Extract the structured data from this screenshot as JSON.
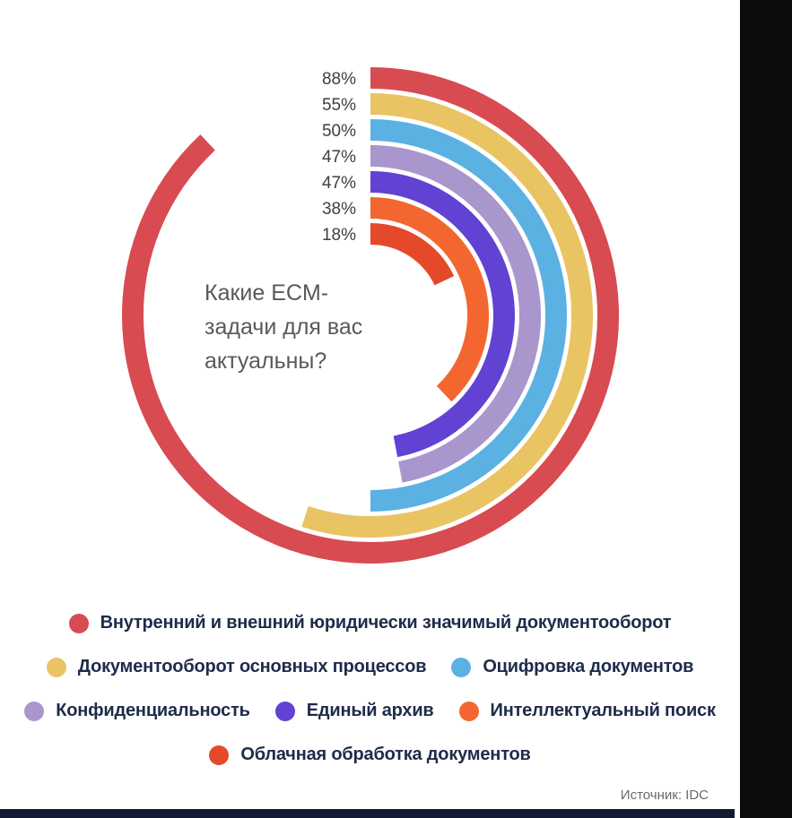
{
  "chart_data": {
    "type": "bar",
    "variant": "radial",
    "title": "Какие ECM-задачи для вас актуальны?",
    "title_lines": [
      "Какие ECM-",
      "задачи для вас",
      "актуальны?"
    ],
    "categories": [
      "Внутренний и внешний юридически значимый документооборот",
      "Документооборот основных процессов",
      "Оцифровка документов",
      "Конфиденциальность",
      "Единый архив",
      "Интеллектуальный поиск",
      "Облачная обработка документов"
    ],
    "values": [
      88,
      55,
      50,
      47,
      47,
      38,
      18
    ],
    "value_labels": [
      "88%",
      "55%",
      "50%",
      "47%",
      "47%",
      "38%",
      "18%"
    ],
    "colors": [
      "#d74b51",
      "#e9c463",
      "#5bb2e2",
      "#a996cc",
      "#6142d2",
      "#f4662f",
      "#e4492a"
    ],
    "unit": "%",
    "max_value": 100,
    "start_angle_deg": 0,
    "direction": "clockwise",
    "grid": false,
    "legend_position": "bottom"
  },
  "legend": {
    "rows": [
      [
        0
      ],
      [
        1,
        2
      ],
      [
        3,
        4,
        5
      ],
      [
        6
      ]
    ]
  },
  "source": {
    "label": "Источник: IDC"
  },
  "decor": {
    "right_strip_color": "#0c0c0c",
    "bottom_bar_color": "#101a33",
    "question_color": "#58595b",
    "value_label_color": "#3f3f3f",
    "legend_text_color": "#1e2b49"
  }
}
